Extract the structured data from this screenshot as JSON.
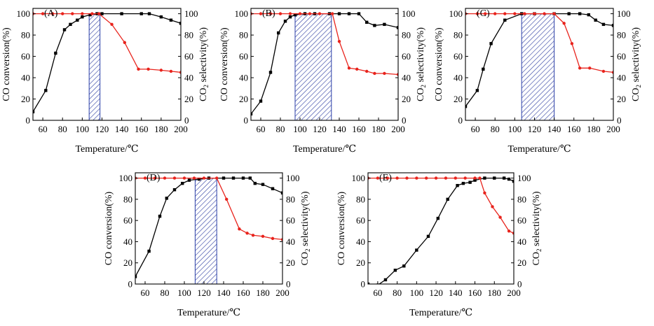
{
  "chart_data": [
    {
      "type": "line",
      "label": "(A)",
      "xlabel": "Temperature/℃",
      "ylabel": "CO conversion(%)",
      "y2label_parts": [
        "CO",
        "2",
        " selectivity(%)"
      ],
      "xlim": [
        50,
        200
      ],
      "ylim": [
        0,
        105
      ],
      "xticks": [
        60,
        80,
        100,
        120,
        140,
        160,
        180,
        200
      ],
      "yticks": [
        0,
        20,
        40,
        60,
        80,
        100
      ],
      "shaded_region": [
        107,
        118
      ],
      "series": [
        {
          "name": "CO conversion",
          "axis": "left",
          "color": "#000000",
          "marker": "square",
          "x": [
            50,
            63,
            73,
            82,
            88,
            95,
            100,
            108,
            115,
            120,
            140,
            160,
            168,
            180,
            190,
            200
          ],
          "y": [
            8,
            28,
            63,
            85,
            90,
            94,
            97,
            99,
            100,
            100,
            100,
            100,
            100,
            97,
            94,
            91
          ]
        },
        {
          "name": "CO2 selectivity",
          "axis": "right",
          "color": "#e8231c",
          "marker": "circle",
          "x": [
            50,
            60,
            70,
            80,
            90,
            100,
            110,
            117,
            130,
            143,
            157,
            167,
            180,
            190,
            200
          ],
          "y": [
            100,
            100,
            100,
            100,
            100,
            100,
            100,
            100,
            90,
            73,
            48,
            48,
            47,
            46,
            45
          ]
        }
      ]
    },
    {
      "type": "line",
      "label": "(B)",
      "xlabel": "Temperature/℃",
      "ylabel": "CO conversion(%)",
      "y2label_parts": [
        "CO",
        "2",
        " selectivity(%)"
      ],
      "xlim": [
        50,
        200
      ],
      "ylim": [
        0,
        105
      ],
      "xticks": [
        60,
        80,
        100,
        120,
        140,
        160,
        180,
        200
      ],
      "yticks": [
        0,
        20,
        40,
        60,
        80,
        100
      ],
      "shaded_region": [
        95,
        132
      ],
      "series": [
        {
          "name": "CO conversion",
          "axis": "left",
          "color": "#000000",
          "marker": "square",
          "x": [
            50,
            60,
            70,
            78,
            85,
            90,
            95,
            105,
            115,
            130,
            140,
            150,
            160,
            168,
            176,
            186,
            200
          ],
          "y": [
            6,
            18,
            45,
            82,
            93,
            97,
            99,
            100,
            100,
            100,
            100,
            100,
            100,
            92,
            89,
            90,
            87
          ]
        },
        {
          "name": "CO2 selectivity",
          "axis": "right",
          "color": "#e8231c",
          "marker": "circle",
          "x": [
            50,
            60,
            70,
            80,
            90,
            100,
            110,
            120,
            133,
            140,
            150,
            158,
            168,
            176,
            186,
            200
          ],
          "y": [
            100,
            100,
            100,
            100,
            100,
            100,
            100,
            100,
            100,
            74,
            49,
            48,
            46,
            44,
            44,
            43
          ]
        }
      ]
    },
    {
      "type": "line",
      "label": "(C)",
      "xlabel": "Temperature/℃",
      "ylabel": "CO conversion(%)",
      "y2label_parts": [
        "CO",
        "2",
        " selectivity(%)"
      ],
      "xlim": [
        50,
        200
      ],
      "ylim": [
        0,
        105
      ],
      "xticks": [
        60,
        80,
        100,
        120,
        140,
        160,
        180,
        200
      ],
      "yticks": [
        0,
        20,
        40,
        60,
        80,
        100
      ],
      "shaded_region": [
        107,
        140
      ],
      "series": [
        {
          "name": "CO conversion",
          "axis": "left",
          "color": "#000000",
          "marker": "square",
          "x": [
            50,
            62,
            68,
            76,
            90,
            107,
            120,
            140,
            155,
            166,
            175,
            182,
            190,
            200
          ],
          "y": [
            13,
            28,
            48,
            72,
            94,
            100,
            100,
            100,
            100,
            100,
            99,
            94,
            90,
            89
          ]
        },
        {
          "name": "CO2 selectivity",
          "axis": "right",
          "color": "#e8231c",
          "marker": "circle",
          "x": [
            50,
            62,
            70,
            80,
            90,
            100,
            110,
            120,
            130,
            140,
            150,
            158,
            166,
            176,
            190,
            200
          ],
          "y": [
            100,
            100,
            100,
            100,
            100,
            100,
            100,
            100,
            100,
            100,
            91,
            72,
            49,
            49,
            46,
            45
          ]
        }
      ]
    },
    {
      "type": "line",
      "label": "(D)",
      "xlabel": "Temperature/℃",
      "ylabel": "CO conversion(%)",
      "y2label_parts": [
        "CO",
        "2",
        " selectivity(%)"
      ],
      "xlim": [
        50,
        200
      ],
      "ylim": [
        0,
        105
      ],
      "xticks": [
        60,
        80,
        100,
        120,
        140,
        160,
        180,
        200
      ],
      "yticks": [
        0,
        20,
        40,
        60,
        80,
        100
      ],
      "shaded_region": [
        111,
        133
      ],
      "series": [
        {
          "name": "CO conversion",
          "axis": "left",
          "color": "#000000",
          "marker": "square",
          "x": [
            50,
            64,
            75,
            82,
            90,
            98,
            105,
            115,
            125,
            140,
            150,
            160,
            167,
            172,
            180,
            190,
            200
          ],
          "y": [
            7,
            31,
            64,
            81,
            89,
            95,
            98,
            99,
            100,
            100,
            100,
            100,
            100,
            95,
            94,
            90,
            86
          ]
        },
        {
          "name": "CO2 selectivity",
          "axis": "right",
          "color": "#e8231c",
          "marker": "circle",
          "x": [
            50,
            60,
            70,
            80,
            90,
            100,
            110,
            120,
            133,
            143,
            156,
            164,
            170,
            180,
            190,
            200
          ],
          "y": [
            100,
            100,
            100,
            100,
            100,
            100,
            100,
            100,
            100,
            80,
            52,
            48,
            46,
            45,
            43,
            42
          ]
        }
      ]
    },
    {
      "type": "line",
      "label": "(E)",
      "xlabel": "Temperature/℃",
      "ylabel": "CO conversion(%)",
      "y2label_parts": [
        "CO",
        "2",
        " selectivity(%)"
      ],
      "xlim": [
        50,
        200
      ],
      "ylim": [
        0,
        105
      ],
      "xticks": [
        60,
        80,
        100,
        120,
        140,
        160,
        180,
        200
      ],
      "yticks": [
        0,
        20,
        40,
        60,
        80,
        100
      ],
      "shaded_region": null,
      "series": [
        {
          "name": "CO conversion",
          "axis": "left",
          "color": "#000000",
          "marker": "square",
          "x": [
            50,
            60,
            68,
            78,
            87,
            100,
            112,
            122,
            132,
            142,
            148,
            155,
            160,
            170,
            180,
            190,
            195,
            200
          ],
          "y": [
            0,
            -1,
            4,
            13,
            17,
            32,
            45,
            62,
            80,
            93,
            95,
            96,
            98,
            100,
            100,
            100,
            99,
            97
          ]
        },
        {
          "name": "CO2 selectivity",
          "axis": "right",
          "color": "#e8231c",
          "marker": "circle",
          "x": [
            50,
            60,
            70,
            80,
            90,
            100,
            110,
            120,
            130,
            140,
            150,
            160,
            165,
            170,
            178,
            186,
            195,
            200
          ],
          "y": [
            100,
            100,
            100,
            100,
            100,
            100,
            100,
            100,
            100,
            100,
            100,
            100,
            100,
            86,
            73,
            63,
            50,
            48
          ]
        }
      ]
    }
  ]
}
